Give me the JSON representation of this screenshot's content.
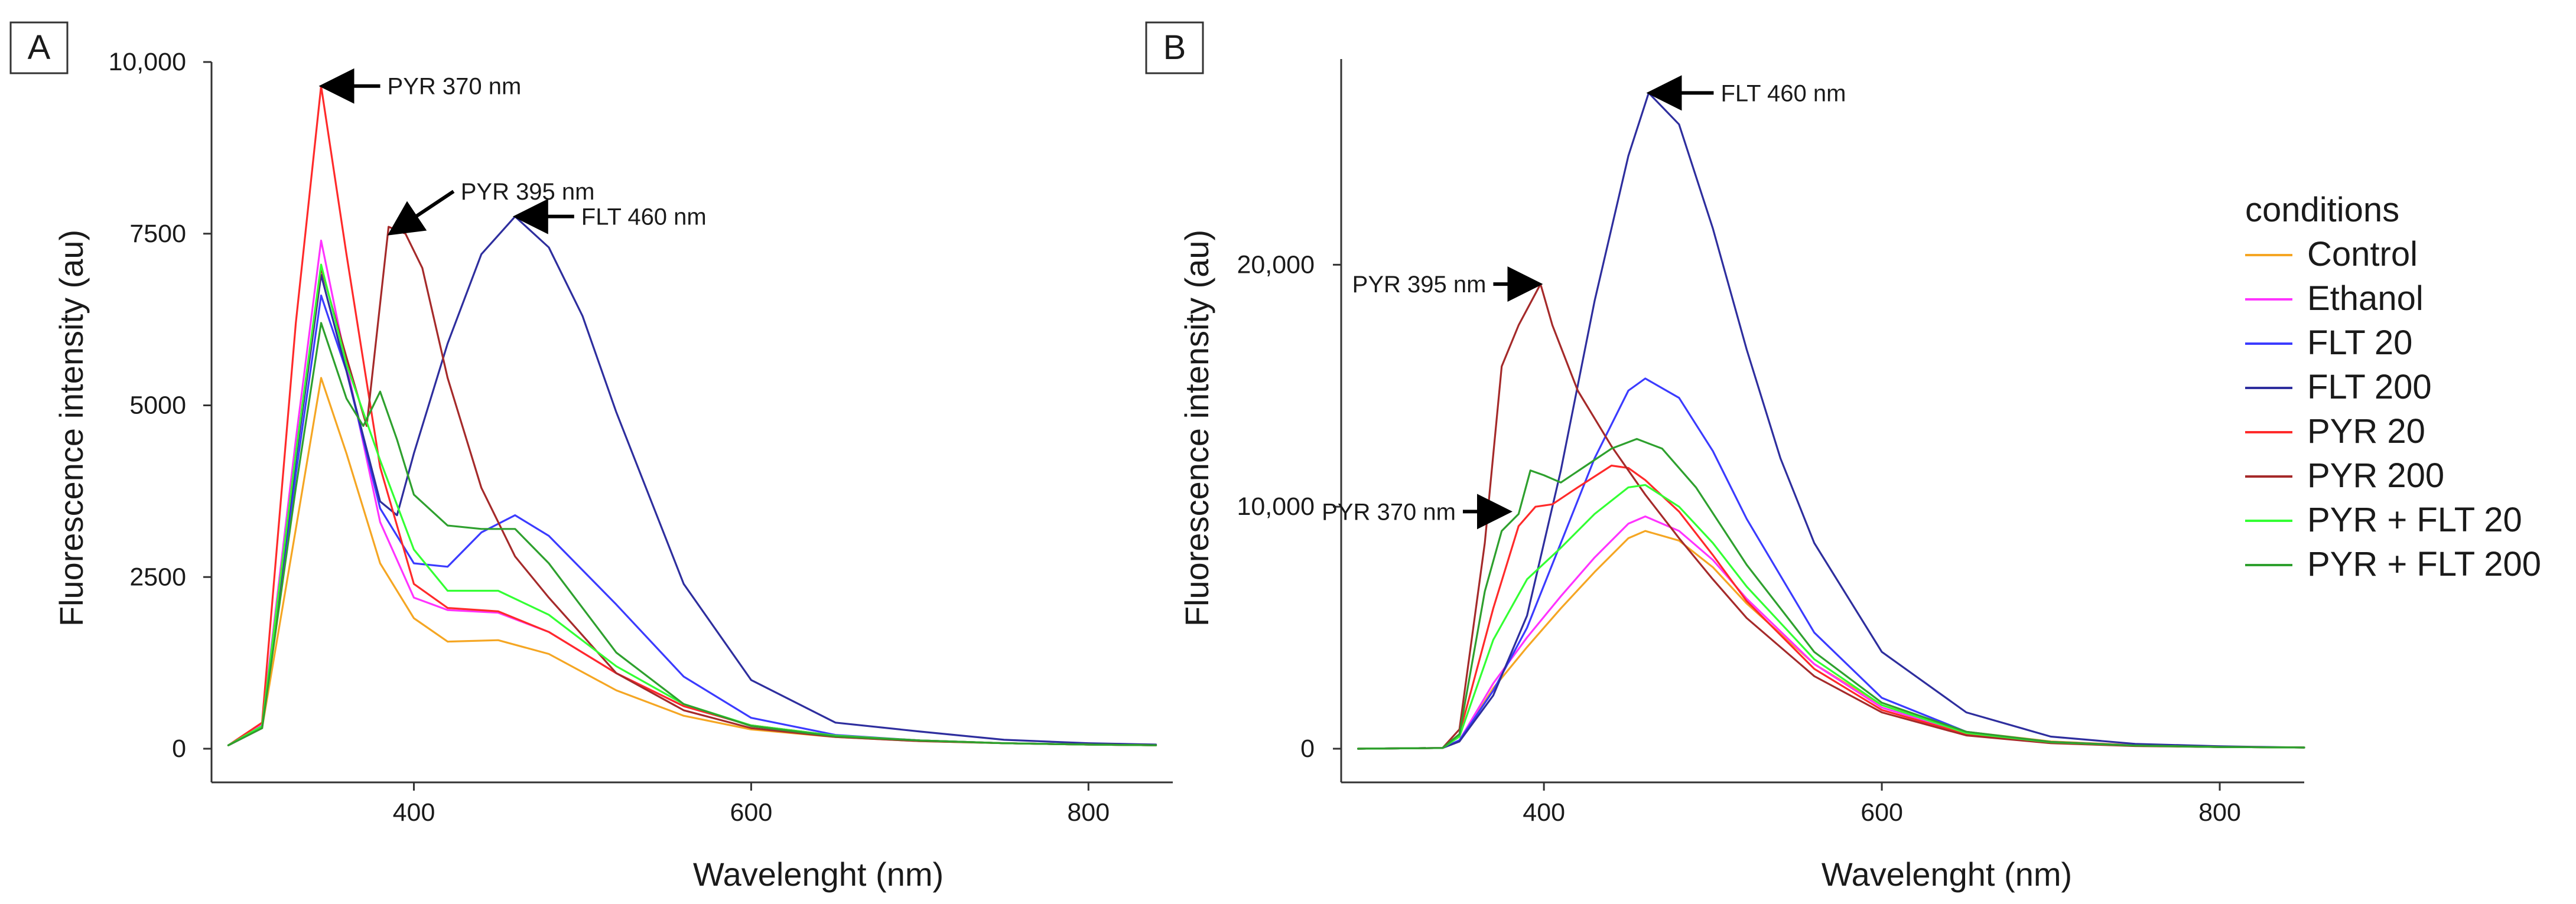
{
  "figure": {
    "legend_title": "conditions"
  },
  "chart_data": [
    {
      "panel": "A",
      "type": "line",
      "xlabel": "Wavelenght (nm)",
      "ylabel": "Fluorescence intensity (au)",
      "xlim": [
        280,
        850
      ],
      "ylim": [
        0,
        10000
      ],
      "xticks": [
        400,
        600,
        800
      ],
      "xtick_labels": [
        "400",
        "600",
        "800"
      ],
      "yticks": [
        0,
        2500,
        5000,
        7500,
        10000
      ],
      "ytick_labels": [
        "0",
        "2500",
        "5000",
        "7500",
        "10,000"
      ],
      "annotations": [
        {
          "text": "PYR 370 nm",
          "x": 345,
          "y": 9650
        },
        {
          "text": "PYR 395 nm",
          "x": 385,
          "y": 7600
        },
        {
          "text": "FLT 460 nm",
          "x": 460,
          "y": 7750
        }
      ],
      "series": [
        {
          "name": "Control",
          "color": "#f5a623",
          "x": [
            290,
            310,
            330,
            345,
            360,
            380,
            400,
            420,
            450,
            480,
            520,
            560,
            600,
            650,
            700,
            750,
            800,
            840
          ],
          "y": [
            50,
            300,
            3200,
            5400,
            4300,
            2700,
            1900,
            1560,
            1580,
            1380,
            850,
            480,
            280,
            170,
            110,
            80,
            60,
            50
          ]
        },
        {
          "name": "Ethanol",
          "color": "#ff33ff",
          "x": [
            290,
            310,
            330,
            345,
            360,
            380,
            400,
            420,
            450,
            480,
            520,
            560,
            600,
            650,
            700,
            750,
            800,
            840
          ],
          "y": [
            50,
            350,
            4500,
            7400,
            5600,
            3300,
            2200,
            2020,
            1980,
            1700,
            1100,
            620,
            340,
            190,
            120,
            80,
            60,
            50
          ]
        },
        {
          "name": "FLT 20",
          "color": "#3b3bff",
          "x": [
            290,
            310,
            330,
            345,
            360,
            380,
            400,
            420,
            440,
            460,
            480,
            520,
            560,
            600,
            650,
            700,
            750,
            800,
            840
          ],
          "y": [
            50,
            300,
            4000,
            6600,
            5500,
            3500,
            2700,
            2650,
            3150,
            3400,
            3100,
            2100,
            1050,
            450,
            200,
            120,
            80,
            60,
            50
          ]
        },
        {
          "name": "FLT 200",
          "color": "#2e2e9e",
          "x": [
            290,
            310,
            330,
            345,
            360,
            380,
            390,
            400,
            420,
            440,
            460,
            480,
            500,
            520,
            560,
            600,
            650,
            700,
            750,
            800,
            840
          ],
          "y": [
            50,
            300,
            4200,
            6900,
            5500,
            3600,
            3400,
            4300,
            5900,
            7200,
            7750,
            7300,
            6300,
            4900,
            2400,
            1000,
            380,
            250,
            130,
            80,
            60
          ]
        },
        {
          "name": "PYR 20",
          "color": "#ff2a2a",
          "x": [
            290,
            310,
            330,
            345,
            360,
            380,
            400,
            420,
            450,
            480,
            520,
            560,
            600,
            650,
            700,
            750,
            800,
            840
          ],
          "y": [
            50,
            380,
            6200,
            9650,
            7200,
            4100,
            2400,
            2050,
            2000,
            1700,
            1100,
            620,
            340,
            190,
            120,
            80,
            60,
            50
          ]
        },
        {
          "name": "PYR 200",
          "color": "#a52a2a",
          "x": [
            290,
            310,
            330,
            345,
            360,
            372,
            385,
            395,
            405,
            420,
            440,
            460,
            480,
            520,
            560,
            600,
            650,
            700,
            750,
            800,
            840
          ],
          "y": [
            50,
            300,
            4300,
            7000,
            5700,
            4700,
            7600,
            7500,
            7000,
            5400,
            3800,
            2800,
            2200,
            1100,
            560,
            300,
            170,
            110,
            80,
            60,
            50
          ]
        },
        {
          "name": "PYR + FLT 20",
          "color": "#33ff33",
          "x": [
            290,
            310,
            330,
            345,
            360,
            380,
            400,
            420,
            450,
            480,
            520,
            560,
            600,
            650,
            700,
            750,
            800,
            840
          ],
          "y": [
            50,
            330,
            4300,
            7050,
            5600,
            4200,
            2900,
            2300,
            2300,
            1950,
            1200,
            650,
            340,
            190,
            120,
            80,
            60,
            50
          ]
        },
        {
          "name": "PYR + FLT 200",
          "color": "#2ea02e",
          "x": [
            290,
            310,
            330,
            345,
            360,
            370,
            380,
            390,
            400,
            420,
            440,
            460,
            480,
            520,
            560,
            600,
            650,
            700,
            750,
            800,
            840
          ],
          "y": [
            50,
            300,
            3800,
            6200,
            5100,
            4700,
            5200,
            4500,
            3700,
            3250,
            3200,
            3200,
            2700,
            1400,
            650,
            330,
            180,
            120,
            80,
            60,
            50
          ]
        }
      ]
    },
    {
      "panel": "B",
      "type": "line",
      "xlabel": "Wavelenght (nm)",
      "ylabel": "Fluorescence intensity (au)",
      "xlim": [
        280,
        850
      ],
      "ylim": [
        0,
        28500
      ],
      "xticks": [
        400,
        600,
        800
      ],
      "xtick_labels": [
        "400",
        "600",
        "800"
      ],
      "yticks": [
        0,
        10000,
        20000
      ],
      "ytick_labels": [
        "0",
        "10,000",
        "20,000"
      ],
      "annotations": [
        {
          "text": "FLT 460 nm",
          "x": 462,
          "y": 27100
        },
        {
          "text": "PYR 395 nm",
          "x": 398,
          "y": 19200
        },
        {
          "text": "PYR 370 nm",
          "x": 380,
          "y": 9800
        }
      ],
      "series": [
        {
          "name": "Control",
          "color": "#f5a623",
          "x": [
            290,
            340,
            350,
            370,
            390,
            410,
            430,
            450,
            460,
            480,
            500,
            520,
            560,
            600,
            650,
            700,
            750,
            800,
            850
          ],
          "y": [
            0,
            30,
            300,
            2500,
            4200,
            5800,
            7300,
            8700,
            9000,
            8600,
            7500,
            6000,
            3500,
            1800,
            700,
            300,
            150,
            80,
            50
          ]
        },
        {
          "name": "Ethanol",
          "color": "#ff33ff",
          "x": [
            290,
            340,
            350,
            370,
            390,
            410,
            430,
            450,
            460,
            480,
            500,
            520,
            560,
            600,
            650,
            700,
            750,
            800,
            850
          ],
          "y": [
            0,
            30,
            350,
            2700,
            4600,
            6300,
            7900,
            9300,
            9600,
            9000,
            7800,
            6200,
            3500,
            1700,
            650,
            280,
            140,
            80,
            50
          ]
        },
        {
          "name": "FLT 20",
          "color": "#3b3bff",
          "x": [
            290,
            340,
            350,
            370,
            390,
            410,
            430,
            450,
            460,
            480,
            500,
            520,
            560,
            600,
            650,
            700,
            750,
            800,
            850
          ],
          "y": [
            0,
            30,
            350,
            2400,
            5000,
            8500,
            12000,
            14800,
            15300,
            14500,
            12300,
            9500,
            4800,
            2100,
            700,
            280,
            130,
            70,
            50
          ]
        },
        {
          "name": "FLT 200",
          "color": "#2e2e9e",
          "x": [
            290,
            340,
            350,
            370,
            390,
            410,
            430,
            450,
            462,
            480,
            500,
            520,
            540,
            560,
            600,
            650,
            700,
            750,
            800,
            850
          ],
          "y": [
            0,
            30,
            300,
            2200,
            5500,
            11500,
            18500,
            24500,
            27100,
            25800,
            21500,
            16500,
            12000,
            8500,
            4000,
            1500,
            500,
            200,
            100,
            50
          ]
        },
        {
          "name": "PYR 20",
          "color": "#ff2a2a",
          "x": [
            290,
            340,
            350,
            370,
            385,
            395,
            405,
            420,
            440,
            450,
            460,
            480,
            500,
            520,
            560,
            600,
            650,
            700,
            750,
            800,
            850
          ],
          "y": [
            0,
            30,
            600,
            5800,
            9200,
            10000,
            10100,
            10800,
            11700,
            11600,
            11100,
            9800,
            8000,
            6100,
            3300,
            1600,
            600,
            250,
            120,
            70,
            50
          ]
        },
        {
          "name": "PYR 200",
          "color": "#a52a2a",
          "x": [
            290,
            340,
            350,
            365,
            375,
            385,
            398,
            405,
            420,
            440,
            460,
            480,
            500,
            520,
            560,
            600,
            650,
            700,
            750,
            800,
            850
          ],
          "y": [
            0,
            30,
            800,
            8500,
            15800,
            17500,
            19200,
            17500,
            14800,
            12500,
            10500,
            8700,
            7000,
            5400,
            3000,
            1500,
            550,
            230,
            110,
            70,
            50
          ]
        },
        {
          "name": "PYR + FLT 20",
          "color": "#33ff33",
          "x": [
            290,
            340,
            350,
            370,
            390,
            410,
            430,
            450,
            460,
            480,
            500,
            520,
            560,
            600,
            650,
            700,
            750,
            800,
            850
          ],
          "y": [
            0,
            30,
            500,
            4500,
            7000,
            8300,
            9700,
            10800,
            10900,
            10000,
            8500,
            6700,
            3700,
            1800,
            650,
            270,
            130,
            70,
            50
          ]
        },
        {
          "name": "PYR + FLT 200",
          "color": "#2ea02e",
          "x": [
            290,
            340,
            350,
            365,
            375,
            385,
            392,
            400,
            410,
            425,
            440,
            455,
            470,
            490,
            520,
            560,
            600,
            650,
            700,
            750,
            800,
            850
          ],
          "y": [
            0,
            30,
            600,
            6500,
            9000,
            9700,
            11500,
            11300,
            11000,
            11700,
            12400,
            12800,
            12400,
            10800,
            7600,
            4000,
            1900,
            700,
            280,
            130,
            70,
            50
          ]
        }
      ]
    }
  ]
}
